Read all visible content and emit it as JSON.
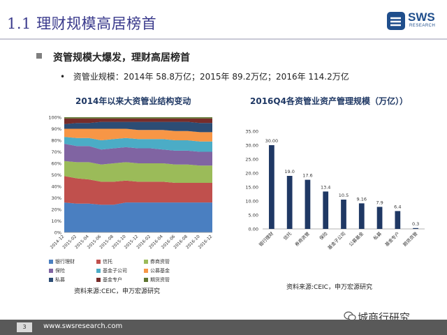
{
  "slide": {
    "title": "1.1 理财规模高居榜首",
    "bullet_main": "资管规模大爆发，理财高居榜首",
    "bullet_sub": "资管业规模：2014年  58.8万亿；2015年  89.2万亿；2016年   114.2万亿",
    "page_number": "3",
    "footer_url": "www.swsresearch.com",
    "watermark": "城商行研究"
  },
  "logo": {
    "brand": "SWS",
    "sub": "RESEARCH"
  },
  "left_chart": {
    "title": "2014年以来大资管业结构变动",
    "source": "资料来源:CEIC，申万宏源研究"
  },
  "right_chart": {
    "title": "2016Q4各资管业资产管理规模（万亿））",
    "source": "资料来源:CEIC，申万宏源研究"
  },
  "colors": {
    "title": "#3a3a8c",
    "bar": "#1f3864",
    "series": [
      "#4a7fc1",
      "#c0504d",
      "#9bbb59",
      "#8064a2",
      "#4bacc6",
      "#f79646",
      "#2c4d75",
      "#772c2a",
      "#5f7530"
    ]
  },
  "chart_data": [
    {
      "type": "area",
      "stacked": "percent",
      "title": "2014年以来大资管业结构变动",
      "x": [
        "2014-12",
        "2015-02",
        "2015-04",
        "2015-06",
        "2015-08",
        "2015-10",
        "2015-12",
        "2016-02",
        "2016-04",
        "2016-06",
        "2016-08",
        "2016-10",
        "2016-12"
      ],
      "ylim": [
        0,
        100
      ],
      "yticks": [
        "0%",
        "10%",
        "20%",
        "30%",
        "40%",
        "50%",
        "60%",
        "70%",
        "80%",
        "90%",
        "100%"
      ],
      "series": [
        {
          "name": "银行理财",
          "values": [
            26,
            25,
            25,
            24,
            24,
            26,
            26,
            26,
            26,
            26,
            26,
            26,
            26
          ]
        },
        {
          "name": "信托",
          "values": [
            23,
            22,
            21,
            20,
            20,
            19,
            18,
            18,
            18,
            17,
            17,
            17,
            17
          ]
        },
        {
          "name": "券商资管",
          "values": [
            13,
            14,
            15,
            15,
            16,
            16,
            16,
            16,
            16,
            16,
            16,
            15,
            15
          ]
        },
        {
          "name": "保险",
          "values": [
            15,
            14,
            14,
            13,
            13,
            13,
            13,
            13,
            12,
            12,
            12,
            12,
            12
          ]
        },
        {
          "name": "基金子公司",
          "values": [
            6,
            7,
            7,
            8,
            8,
            8,
            8,
            8,
            9,
            9,
            9,
            9,
            9
          ]
        },
        {
          "name": "公募基金",
          "values": [
            7,
            8,
            8,
            10,
            9,
            8,
            8,
            8,
            8,
            8,
            8,
            8,
            8
          ]
        },
        {
          "name": "私募",
          "values": [
            4,
            5,
            5,
            6,
            6,
            6,
            7,
            7,
            7,
            8,
            8,
            8,
            8
          ]
        },
        {
          "name": "基金专户",
          "values": [
            5,
            4,
            4,
            3,
            3,
            3,
            3,
            3,
            3,
            3,
            3,
            4,
            4
          ]
        },
        {
          "name": "期货资管",
          "values": [
            1,
            1,
            1,
            1,
            1,
            1,
            1,
            1,
            1,
            1,
            1,
            1,
            1
          ]
        }
      ]
    },
    {
      "type": "bar",
      "title": "2016Q4各资管业资产管理规模（万亿））",
      "categories": [
        "银行理财",
        "信托",
        "券商资管",
        "保险",
        "基金子公司",
        "公募基金",
        "私募",
        "基金专户",
        "期货资管"
      ],
      "values": [
        30.0,
        19.0,
        17.6,
        13.4,
        10.5,
        9.16,
        7.9,
        6.4,
        0.3
      ],
      "labels": [
        "30.00",
        "19.0",
        "17.6",
        "13.4",
        "10.5",
        "9.16",
        "7.9",
        "6.4",
        "0.3"
      ],
      "ylim": [
        0,
        35
      ],
      "yticks": [
        "0.00",
        "5.00",
        "10.00",
        "15.00",
        "20.00",
        "25.00",
        "30.00",
        "35.00"
      ]
    }
  ]
}
